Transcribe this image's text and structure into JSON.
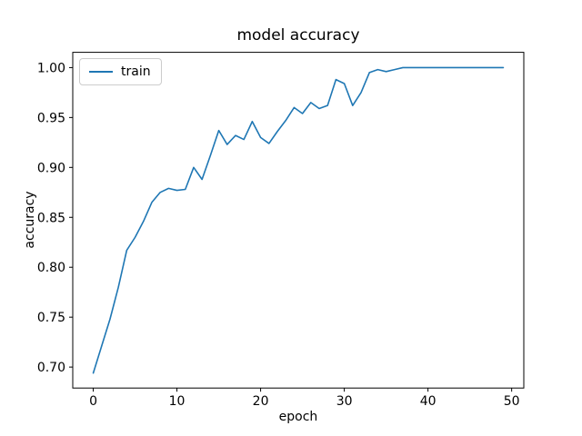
{
  "title": "model accuracy",
  "axes": {
    "xlabel": "epoch",
    "ylabel": "accuracy"
  },
  "legend": {
    "entries": [
      {
        "label": "train",
        "color": "#1f77b4"
      }
    ]
  },
  "colors": {
    "line": "#1f77b4",
    "text": "#000000",
    "spine": "#000000",
    "legend_border": "#cccccc",
    "background": "#ffffff"
  },
  "chart_data": {
    "type": "line",
    "title": "model accuracy",
    "xlabel": "epoch",
    "ylabel": "accuracy",
    "grid": false,
    "legend_position": "upper left",
    "x_ticks": [
      0,
      10,
      20,
      30,
      40,
      50
    ],
    "y_ticks": [
      0.7,
      0.75,
      0.8,
      0.85,
      0.9,
      0.95,
      1.0
    ],
    "xlim": [
      -2.45,
      51.45
    ],
    "ylim": [
      0.679,
      1.0153
    ],
    "series": [
      {
        "name": "train",
        "color": "#1f77b4",
        "x": [
          0,
          1,
          2,
          3,
          4,
          5,
          6,
          7,
          8,
          9,
          10,
          11,
          12,
          13,
          14,
          15,
          16,
          17,
          18,
          19,
          20,
          21,
          22,
          23,
          24,
          25,
          26,
          27,
          28,
          29,
          30,
          31,
          32,
          33,
          34,
          35,
          36,
          37,
          38,
          39,
          40,
          41,
          42,
          43,
          44,
          45,
          46,
          47,
          48,
          49
        ],
        "values": [
          0.694,
          0.721,
          0.748,
          0.78,
          0.817,
          0.83,
          0.846,
          0.865,
          0.875,
          0.879,
          0.877,
          0.878,
          0.9,
          0.888,
          0.912,
          0.937,
          0.923,
          0.932,
          0.928,
          0.946,
          0.93,
          0.924,
          0.936,
          0.947,
          0.96,
          0.954,
          0.965,
          0.959,
          0.962,
          0.988,
          0.984,
          0.962,
          0.975,
          0.995,
          0.998,
          0.996,
          0.998,
          1.0,
          1.0,
          1.0,
          1.0,
          1.0,
          1.0,
          1.0,
          1.0,
          1.0,
          1.0,
          1.0,
          1.0,
          1.0
        ]
      }
    ]
  }
}
